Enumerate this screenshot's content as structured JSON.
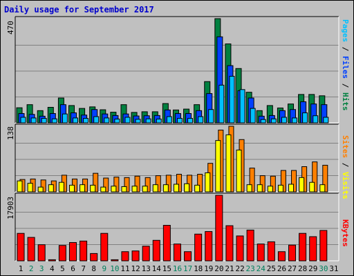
{
  "title": "Daily usage for September 2017",
  "colors": {
    "hits": "#008040",
    "files": "#0040ff",
    "pages": "#00c0ff",
    "visits": "#ffff00",
    "sites": "#ff8000",
    "kbytes": "#ff0000",
    "weekday": "#000000",
    "weekend": "#00805c"
  },
  "right_labels": {
    "pages": "Pages",
    "files": "Files",
    "hits": "Hits",
    "sites": "Sites",
    "visits": "Visits",
    "kbytes": "KBytes",
    "sep": " / "
  },
  "chart_data": [
    {
      "type": "bar",
      "ymax_label": "470",
      "ylim": [
        0,
        470
      ],
      "categories": [
        "1",
        "2",
        "3",
        "4",
        "5",
        "6",
        "7",
        "8",
        "9",
        "10",
        "11",
        "12",
        "13",
        "14",
        "15",
        "16",
        "17",
        "18",
        "19",
        "20",
        "21",
        "22",
        "23",
        "24",
        "25",
        "26",
        "27",
        "28",
        "29",
        "30",
        "31"
      ],
      "series": [
        {
          "name": "Hits",
          "values": [
            68,
            82,
            55,
            70,
            112,
            78,
            65,
            72,
            59,
            48,
            82,
            47,
            50,
            50,
            87,
            58,
            62,
            82,
            186,
            470,
            356,
            245,
            138,
            55,
            78,
            67,
            85,
            128,
            128,
            122,
            0
          ]
        },
        {
          "name": "Files",
          "values": [
            42,
            38,
            30,
            42,
            82,
            45,
            35,
            60,
            40,
            33,
            40,
            31,
            32,
            33,
            58,
            42,
            42,
            55,
            132,
            388,
            258,
            145,
            112,
            30,
            33,
            55,
            60,
            95,
            85,
            82,
            0
          ]
        },
        {
          "name": "Pages",
          "values": [
            25,
            22,
            20,
            18,
            40,
            22,
            20,
            28,
            22,
            17,
            25,
            16,
            18,
            17,
            28,
            20,
            20,
            28,
            60,
            170,
            210,
            150,
            65,
            15,
            18,
            25,
            22,
            45,
            32,
            25,
            0
          ]
        }
      ]
    },
    {
      "type": "bar",
      "ymax_label": "138",
      "ylim": [
        0,
        138
      ],
      "categories": [
        "1",
        "2",
        "3",
        "4",
        "5",
        "6",
        "7",
        "8",
        "9",
        "10",
        "11",
        "12",
        "13",
        "14",
        "15",
        "16",
        "17",
        "18",
        "19",
        "20",
        "21",
        "22",
        "23",
        "24",
        "25",
        "26",
        "27",
        "28",
        "29",
        "30",
        "31"
      ],
      "series": [
        {
          "name": "Visits",
          "values": [
            23,
            18,
            10,
            15,
            20,
            14,
            15,
            14,
            10,
            12,
            11,
            12,
            12,
            15,
            15,
            16,
            17,
            14,
            40,
            108,
            120,
            88,
            15,
            15,
            12,
            14,
            16,
            30,
            20,
            15,
            0
          ]
        },
        {
          "name": "Sites",
          "values": [
            26,
            27,
            25,
            23,
            35,
            27,
            27,
            39,
            29,
            31,
            30,
            33,
            30,
            34,
            35,
            37,
            35,
            37,
            60,
            130,
            138,
            110,
            50,
            34,
            33,
            45,
            45,
            53,
            63,
            56,
            0
          ]
        }
      ]
    },
    {
      "type": "bar",
      "ymax_label": "17903",
      "ylim": [
        0,
        17903
      ],
      "categories": [
        "1",
        "2",
        "3",
        "4",
        "5",
        "6",
        "7",
        "8",
        "9",
        "10",
        "11",
        "12",
        "13",
        "14",
        "15",
        "16",
        "17",
        "18",
        "19",
        "20",
        "21",
        "22",
        "23",
        "24",
        "25",
        "26",
        "27",
        "28",
        "29",
        "30",
        "31"
      ],
      "series": [
        {
          "name": "KBytes",
          "values": [
            7500,
            6400,
            4400,
            300,
            4200,
            5000,
            5400,
            2000,
            7500,
            300,
            2500,
            2700,
            4000,
            5600,
            9700,
            4600,
            2500,
            7300,
            8000,
            17903,
            9600,
            6800,
            8400,
            4600,
            5200,
            2500,
            4300,
            7500,
            6600,
            8300,
            0
          ]
        }
      ]
    }
  ]
}
